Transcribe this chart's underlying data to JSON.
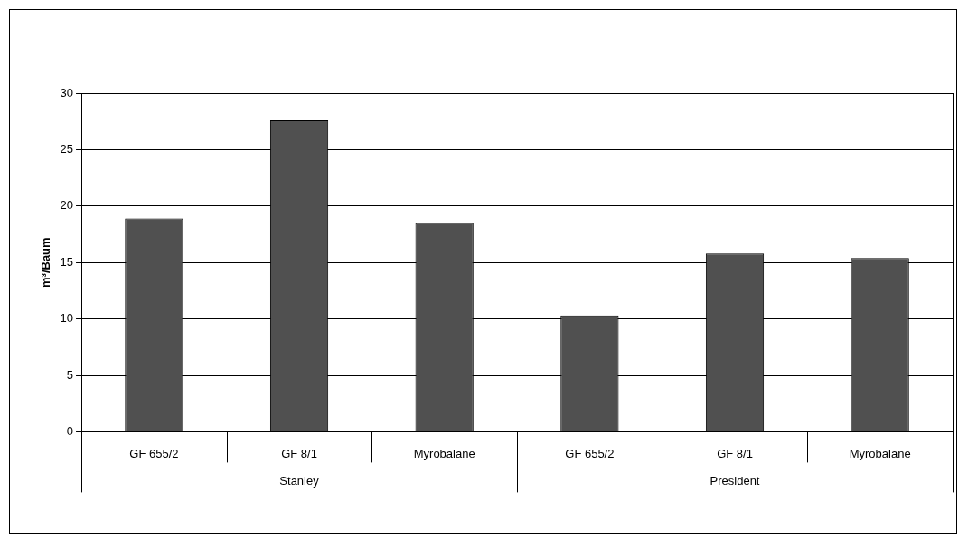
{
  "chart_data": {
    "type": "bar",
    "ylabel": "m³/Baum",
    "categories": [
      "GF 655/2",
      "GF 8/1",
      "Myrobalane",
      "GF 655/2",
      "GF 8/1",
      "Myrobalane"
    ],
    "values": [
      18.9,
      27.6,
      18.5,
      10.3,
      15.8,
      15.4
    ],
    "color": "#505050",
    "ylim": [
      0,
      30
    ],
    "yticks": [
      0,
      5,
      10,
      15,
      20,
      25,
      30
    ],
    "grid": "y",
    "annotations": [
      "Stanley",
      "President"
    ]
  }
}
